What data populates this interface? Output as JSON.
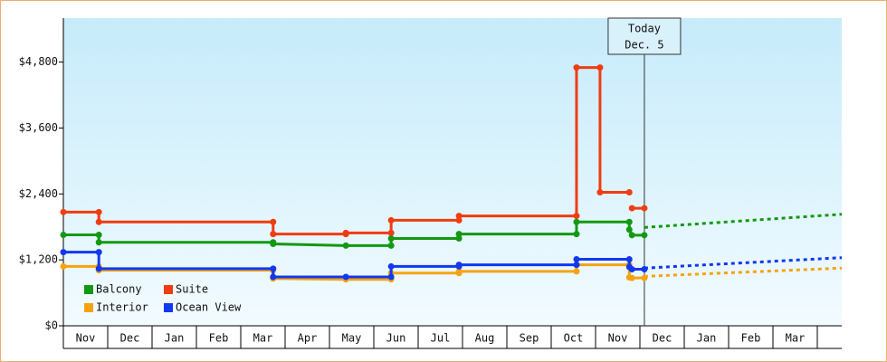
{
  "chart_data": {
    "type": "step-line",
    "ylim": [
      0,
      5600
    ],
    "yticks": [
      {
        "value": 0,
        "label": "$0"
      },
      {
        "value": 1200,
        "label": "$1,200"
      },
      {
        "value": 2400,
        "label": "$2,400"
      },
      {
        "value": 3600,
        "label": "$3,600"
      },
      {
        "value": 4800,
        "label": "$4,800"
      }
    ],
    "xlim": [
      0,
      17.55
    ],
    "categories": [
      "Nov",
      "Dec",
      "Jan",
      "Feb",
      "Mar",
      "Apr",
      "May",
      "Jun",
      "Jul",
      "Aug",
      "Sep",
      "Oct",
      "Nov",
      "Dec",
      "Jan",
      "Feb",
      "Mar"
    ],
    "today": {
      "x": 13.1,
      "label": "Today",
      "date": "Dec. 5"
    },
    "series": [
      {
        "name": "Balcony",
        "color": "#129912",
        "x": [
          0,
          0.8,
          0.8,
          4.73,
          4.73,
          6.37,
          7.39,
          7.39,
          8.92,
          8.92,
          11.57,
          11.57,
          12.76,
          12.76,
          12.82,
          13.1
        ],
        "values": [
          1655,
          1655,
          1520,
          1520,
          1490,
          1460,
          1460,
          1590,
          1590,
          1670,
          1670,
          1890,
          1890,
          1750,
          1650,
          1650
        ],
        "projection": {
          "x": [
            13.1,
            17.55
          ],
          "values": [
            1790,
            2030
          ]
        }
      },
      {
        "name": "Suite",
        "color": "#f03c12",
        "x": [
          0,
          0.8,
          0.8,
          4.73,
          4.73,
          6.37,
          6.37,
          7.39,
          7.39,
          8.92,
          8.92,
          11.57,
          11.57,
          12.1,
          12.1,
          12.76,
          12.76,
          12.82,
          13.1
        ],
        "values": [
          2070,
          2070,
          1890,
          1890,
          1670,
          1670,
          1690,
          1690,
          1920,
          1920,
          2000,
          2000,
          4700,
          4700,
          2430,
          2430,
          null,
          2140,
          2140
        ]
      },
      {
        "name": "Interior",
        "color": "#f5a312",
        "x": [
          0,
          0.8,
          0.8,
          4.73,
          4.73,
          6.37,
          7.39,
          7.39,
          8.92,
          8.92,
          11.57,
          11.57,
          12.76,
          12.76,
          12.82,
          13.1
        ],
        "values": [
          1080,
          1080,
          1010,
          1010,
          860,
          845,
          845,
          960,
          960,
          990,
          990,
          1110,
          1110,
          880,
          870,
          870
        ],
        "projection": {
          "x": [
            13.1,
            17.55
          ],
          "values": [
            900,
            1050
          ]
        }
      },
      {
        "name": "Ocean View",
        "color": "#1238f0",
        "x": [
          0,
          0.8,
          0.8,
          4.73,
          4.73,
          6.37,
          7.39,
          7.39,
          8.92,
          8.92,
          11.57,
          11.57,
          12.76,
          12.76,
          12.82,
          13.1
        ],
        "values": [
          1340,
          1340,
          1040,
          1040,
          890,
          890,
          890,
          1080,
          1080,
          1110,
          1110,
          1210,
          1210,
          1070,
          1030,
          1030
        ],
        "projection": {
          "x": [
            13.1,
            17.55
          ],
          "values": [
            1050,
            1240
          ]
        }
      }
    ]
  }
}
